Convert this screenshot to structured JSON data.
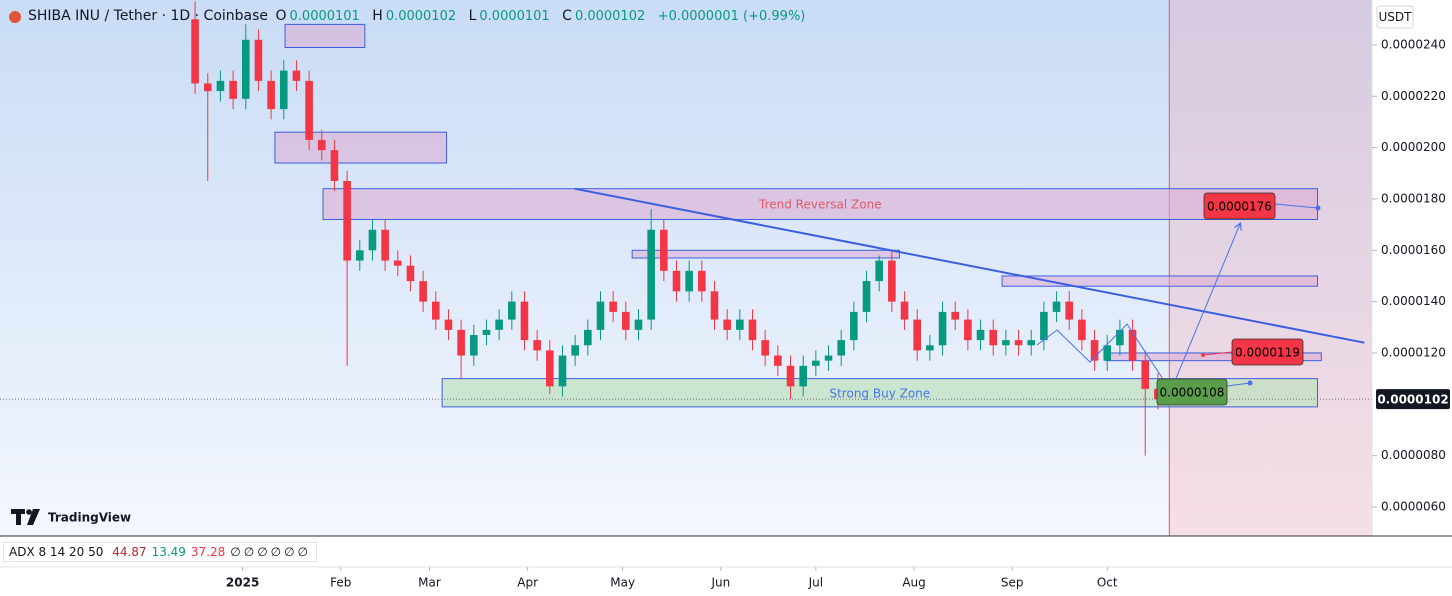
{
  "chart_data": {
    "type": "candlestick",
    "header": {
      "symbol": "SHIBA INU / Tether · 1D · Coinbase",
      "ohlc": [
        {
          "key": "O",
          "value": "0.0000101"
        },
        {
          "key": "H",
          "value": "0.0000102"
        },
        {
          "key": "L",
          "value": "0.0000101"
        },
        {
          "key": "C",
          "value": "0.0000102"
        }
      ],
      "change": "+0.0000001 (+0.99%)"
    },
    "currency": "USDT",
    "logo": "TradingView",
    "indicator": {
      "label": "ADX 8 14 20 50",
      "values": [
        "44.87",
        "13.49",
        "37.28"
      ],
      "colors": [
        "#b22833",
        "#089981",
        "#f23645"
      ],
      "extras": [
        "∅",
        "∅",
        "∅",
        "∅",
        "∅",
        "∅"
      ]
    },
    "up_color": "#089981",
    "down_color": "#f23645",
    "candles": [
      [
        2.5e-05,
        2.57e-05,
        2.21e-05,
        2.25e-05
      ],
      [
        2.25e-05,
        2.29e-05,
        1.87e-05,
        2.22e-05
      ],
      [
        2.22e-05,
        2.3e-05,
        2.18e-05,
        2.26e-05
      ],
      [
        2.26e-05,
        2.3e-05,
        2.15e-05,
        2.19e-05
      ],
      [
        2.19e-05,
        2.48e-05,
        2.15e-05,
        2.42e-05
      ],
      [
        2.42e-05,
        2.46e-05,
        2.22e-05,
        2.26e-05
      ],
      [
        2.26e-05,
        2.3e-05,
        2.11e-05,
        2.15e-05
      ],
      [
        2.15e-05,
        2.34e-05,
        2.11e-05,
        2.3e-05
      ],
      [
        2.3e-05,
        2.34e-05,
        2.22e-05,
        2.26e-05
      ],
      [
        2.26e-05,
        2.3e-05,
        1.99e-05,
        2.03e-05
      ],
      [
        2.03e-05,
        2.07e-05,
        1.95e-05,
        1.99e-05
      ],
      [
        1.99e-05,
        2.03e-05,
        1.83e-05,
        1.87e-05
      ],
      [
        1.87e-05,
        1.91e-05,
        1.15e-05,
        1.56e-05
      ],
      [
        1.56e-05,
        1.64e-05,
        1.52e-05,
        1.6e-05
      ],
      [
        1.6e-05,
        1.72e-05,
        1.56e-05,
        1.68e-05
      ],
      [
        1.68e-05,
        1.72e-05,
        1.52e-05,
        1.56e-05
      ],
      [
        1.56e-05,
        1.6e-05,
        1.5e-05,
        1.54e-05
      ],
      [
        1.54e-05,
        1.58e-05,
        1.44e-05,
        1.48e-05
      ],
      [
        1.48e-05,
        1.52e-05,
        1.36e-05,
        1.4e-05
      ],
      [
        1.4e-05,
        1.44e-05,
        1.29e-05,
        1.33e-05
      ],
      [
        1.33e-05,
        1.37e-05,
        1.25e-05,
        1.29e-05
      ],
      [
        1.29e-05,
        1.33e-05,
        1.1e-05,
        1.19e-05
      ],
      [
        1.19e-05,
        1.31e-05,
        1.15e-05,
        1.27e-05
      ],
      [
        1.27e-05,
        1.33e-05,
        1.23e-05,
        1.29e-05
      ],
      [
        1.29e-05,
        1.37e-05,
        1.25e-05,
        1.33e-05
      ],
      [
        1.33e-05,
        1.44e-05,
        1.29e-05,
        1.4e-05
      ],
      [
        1.4e-05,
        1.44e-05,
        1.21e-05,
        1.25e-05
      ],
      [
        1.25e-05,
        1.29e-05,
        1.17e-05,
        1.21e-05
      ],
      [
        1.21e-05,
        1.25e-05,
        1.04e-05,
        1.07e-05
      ],
      [
        1.07e-05,
        1.23e-05,
        1.03e-05,
        1.19e-05
      ],
      [
        1.19e-05,
        1.27e-05,
        1.15e-05,
        1.23e-05
      ],
      [
        1.23e-05,
        1.33e-05,
        1.19e-05,
        1.29e-05
      ],
      [
        1.29e-05,
        1.44e-05,
        1.25e-05,
        1.4e-05
      ],
      [
        1.4e-05,
        1.44e-05,
        1.32e-05,
        1.36e-05
      ],
      [
        1.36e-05,
        1.4e-05,
        1.25e-05,
        1.29e-05
      ],
      [
        1.29e-05,
        1.37e-05,
        1.25e-05,
        1.33e-05
      ],
      [
        1.33e-05,
        1.76e-05,
        1.29e-05,
        1.68e-05
      ],
      [
        1.68e-05,
        1.72e-05,
        1.48e-05,
        1.52e-05
      ],
      [
        1.52e-05,
        1.56e-05,
        1.4e-05,
        1.44e-05
      ],
      [
        1.44e-05,
        1.56e-05,
        1.4e-05,
        1.52e-05
      ],
      [
        1.52e-05,
        1.56e-05,
        1.4e-05,
        1.44e-05
      ],
      [
        1.44e-05,
        1.48e-05,
        1.29e-05,
        1.33e-05
      ],
      [
        1.33e-05,
        1.37e-05,
        1.25e-05,
        1.29e-05
      ],
      [
        1.29e-05,
        1.37e-05,
        1.25e-05,
        1.33e-05
      ],
      [
        1.33e-05,
        1.37e-05,
        1.21e-05,
        1.25e-05
      ],
      [
        1.25e-05,
        1.29e-05,
        1.15e-05,
        1.19e-05
      ],
      [
        1.19e-05,
        1.23e-05,
        1.11e-05,
        1.15e-05
      ],
      [
        1.15e-05,
        1.19e-05,
        1.02e-05,
        1.07e-05
      ],
      [
        1.07e-05,
        1.19e-05,
        1.03e-05,
        1.15e-05
      ],
      [
        1.15e-05,
        1.21e-05,
        1.11e-05,
        1.17e-05
      ],
      [
        1.17e-05,
        1.23e-05,
        1.13e-05,
        1.19e-05
      ],
      [
        1.19e-05,
        1.29e-05,
        1.15e-05,
        1.25e-05
      ],
      [
        1.25e-05,
        1.4e-05,
        1.21e-05,
        1.36e-05
      ],
      [
        1.36e-05,
        1.52e-05,
        1.32e-05,
        1.48e-05
      ],
      [
        1.48e-05,
        1.58e-05,
        1.44e-05,
        1.56e-05
      ],
      [
        1.56e-05,
        1.6e-05,
        1.36e-05,
        1.4e-05
      ],
      [
        1.4e-05,
        1.44e-05,
        1.29e-05,
        1.33e-05
      ],
      [
        1.33e-05,
        1.37e-05,
        1.17e-05,
        1.21e-05
      ],
      [
        1.21e-05,
        1.27e-05,
        1.17e-05,
        1.23e-05
      ],
      [
        1.23e-05,
        1.4e-05,
        1.19e-05,
        1.36e-05
      ],
      [
        1.36e-05,
        1.4e-05,
        1.29e-05,
        1.33e-05
      ],
      [
        1.33e-05,
        1.37e-05,
        1.21e-05,
        1.25e-05
      ],
      [
        1.25e-05,
        1.33e-05,
        1.21e-05,
        1.29e-05
      ],
      [
        1.29e-05,
        1.33e-05,
        1.19e-05,
        1.23e-05
      ],
      [
        1.23e-05,
        1.29e-05,
        1.19e-05,
        1.25e-05
      ],
      [
        1.25e-05,
        1.29e-05,
        1.19e-05,
        1.23e-05
      ],
      [
        1.23e-05,
        1.29e-05,
        1.19e-05,
        1.25e-05
      ],
      [
        1.25e-05,
        1.4e-05,
        1.21e-05,
        1.36e-05
      ],
      [
        1.36e-05,
        1.44e-05,
        1.32e-05,
        1.4e-05
      ],
      [
        1.4e-05,
        1.44e-05,
        1.29e-05,
        1.33e-05
      ],
      [
        1.33e-05,
        1.37e-05,
        1.21e-05,
        1.25e-05
      ],
      [
        1.25e-05,
        1.29e-05,
        1.13e-05,
        1.17e-05
      ],
      [
        1.17e-05,
        1.27e-05,
        1.13e-05,
        1.23e-05
      ],
      [
        1.23e-05,
        1.33e-05,
        1.19e-05,
        1.29e-05
      ],
      [
        1.29e-05,
        1.33e-05,
        1.13e-05,
        1.17e-05
      ],
      [
        1.17e-05,
        1.21e-05,
        8e-06,
        1.06e-05
      ],
      [
        1.06e-05,
        1.12e-05,
        9.8e-06,
        1.02e-05
      ],
      [
        1.02e-05,
        1.02e-05,
        1.01e-05,
        1.02e-05
      ]
    ],
    "last_price_label": "0.0000102",
    "xlim": [
      -15.4,
      92.9
    ],
    "ylim": [
      4.87e-06,
      2.575e-05
    ],
    "xticks": [
      {
        "value": 3.75,
        "label": "2025"
      },
      {
        "value": 11.5,
        "label": "Feb"
      },
      {
        "value": 18.5,
        "label": "Mar"
      },
      {
        "value": 26.25,
        "label": "Apr"
      },
      {
        "value": 33.75,
        "label": "May"
      },
      {
        "value": 41.5,
        "label": "Jun"
      },
      {
        "value": 49,
        "label": "Jul"
      },
      {
        "value": 56.75,
        "label": "Aug"
      },
      {
        "value": 64.5,
        "label": "Sep"
      },
      {
        "value": 72,
        "label": "Oct"
      }
    ],
    "yticks": [
      {
        "value": 2.4e-05,
        "label": "0.0000240"
      },
      {
        "value": 2.2e-05,
        "label": "0.0000220"
      },
      {
        "value": 2e-05,
        "label": "0.0000200"
      },
      {
        "value": 1.8e-05,
        "label": "0.0000180"
      },
      {
        "value": 1.6e-05,
        "label": "0.0000160"
      },
      {
        "value": 1.4e-05,
        "label": "0.0000140"
      },
      {
        "value": 1.2e-05,
        "label": "0.0000120"
      },
      {
        "value": 8e-06,
        "label": "0.0000080"
      },
      {
        "value": 6e-06,
        "label": "0.0000060"
      }
    ],
    "zones": [
      {
        "x": [
          7.1,
          13.4
        ],
        "y": [
          2.48e-05,
          2.39e-05
        ],
        "color": "purple"
      },
      {
        "x": [
          6.3,
          19.85
        ],
        "y": [
          2.06e-05,
          1.94e-05
        ],
        "color": "purple"
      },
      {
        "label": "Trend Reversal Zone",
        "x": [
          10.1,
          88.6
        ],
        "y": [
          1.84e-05,
          1.72e-05
        ],
        "color": "purple"
      },
      {
        "x": [
          34.5,
          55.6
        ],
        "y": [
          1.6e-05,
          1.57e-05
        ],
        "color": "purple"
      },
      {
        "x": [
          63.7,
          88.6
        ],
        "y": [
          1.5e-05,
          1.46e-05
        ],
        "color": "purple"
      },
      {
        "x": [
          71.9,
          88.9
        ],
        "y": [
          1.2e-05,
          1.17e-05
        ],
        "color": "purple"
      },
      {
        "label": "Strong Buy Zone",
        "x": [
          19.5,
          88.6
        ],
        "y": [
          1.1e-05,
          9.9e-06
        ],
        "color": "green"
      }
    ],
    "trendline": {
      "x": [
        29.95,
        92.3
      ],
      "y": [
        1.84e-05,
        1.24e-05
      ]
    },
    "projection_start": 76.9,
    "price_tags": [
      {
        "label": "0.0000176",
        "color": "#f23645"
      },
      {
        "label": "0.0000119",
        "color": "#f23645"
      },
      {
        "label": "0.0000108",
        "color": "#5a9e4b"
      }
    ]
  }
}
